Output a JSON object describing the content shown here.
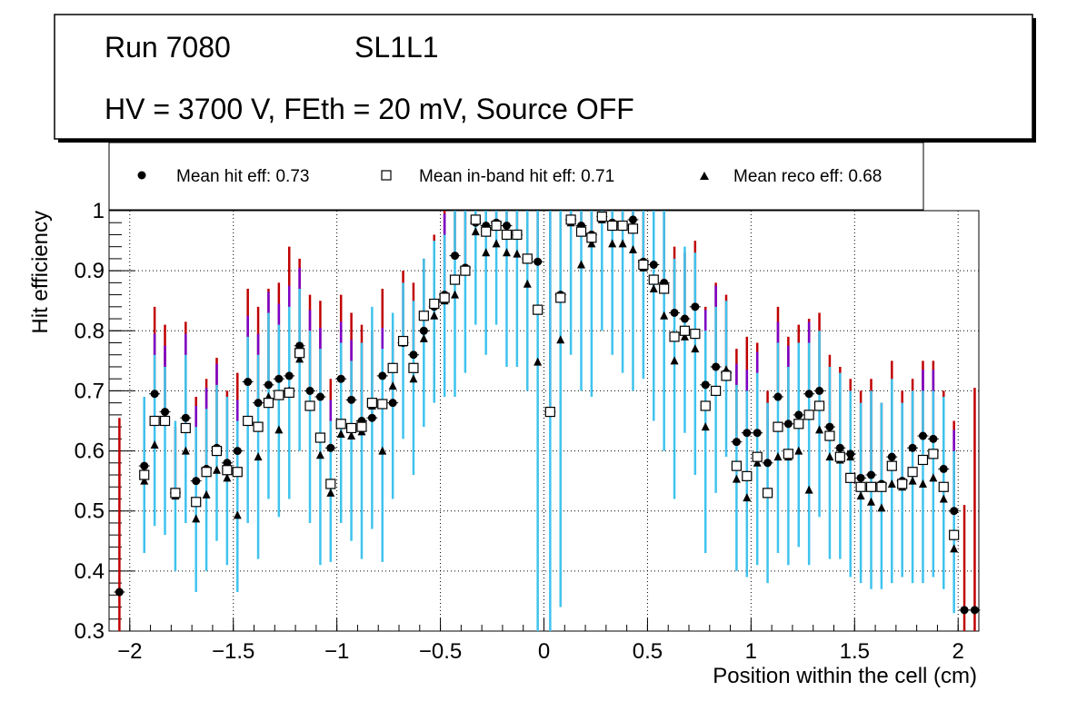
{
  "chart_data": {
    "type": "scatter",
    "title_lines": {
      "run": "Run 7080",
      "layer": "SL1L1",
      "conditions": "HV = 3700 V, FEth = 20 mV, Source OFF"
    },
    "xlabel": "Position within the cell (cm)",
    "ylabel": "Hit efficiency",
    "xlim": [
      -2.1,
      2.1
    ],
    "ylim": [
      0.3,
      1.0
    ],
    "xticks": [
      "−2",
      "−1.5",
      "−1",
      "−0.5",
      "0",
      "0.5",
      "1",
      "1.5",
      "2"
    ],
    "xtick_values": [
      -2,
      -1.5,
      -1,
      -0.5,
      0,
      0.5,
      1,
      1.5,
      2
    ],
    "yticks": [
      "0.3",
      "0.4",
      "0.5",
      "0.6",
      "0.7",
      "0.8",
      "0.9",
      "1"
    ],
    "ytick_values": [
      0.3,
      0.4,
      0.5,
      0.6,
      0.7,
      0.8,
      0.9,
      1.0
    ],
    "grid": true,
    "legend": {
      "placement": "top",
      "entries": [
        {
          "marker": "circle",
          "label": "Mean hit  eff: 0.73"
        },
        {
          "marker": "open-square",
          "label": "Mean in-band hit eff: 0.71"
        },
        {
          "marker": "triangle",
          "label": "Mean reco eff: 0.68"
        }
      ]
    },
    "x": [
      -2.05,
      -1.93,
      -1.88,
      -1.83,
      -1.78,
      -1.73,
      -1.68,
      -1.63,
      -1.58,
      -1.53,
      -1.48,
      -1.43,
      -1.38,
      -1.33,
      -1.28,
      -1.23,
      -1.18,
      -1.13,
      -1.08,
      -1.03,
      -0.98,
      -0.93,
      -0.88,
      -0.83,
      -0.78,
      -0.73,
      -0.68,
      -0.63,
      -0.58,
      -0.53,
      -0.48,
      -0.43,
      -0.38,
      -0.33,
      -0.28,
      -0.23,
      -0.18,
      -0.13,
      -0.08,
      -0.03,
      0.03,
      0.08,
      0.13,
      0.18,
      0.23,
      0.28,
      0.33,
      0.38,
      0.43,
      0.48,
      0.53,
      0.58,
      0.63,
      0.68,
      0.73,
      0.78,
      0.83,
      0.88,
      0.93,
      0.98,
      1.03,
      1.08,
      1.13,
      1.18,
      1.23,
      1.28,
      1.33,
      1.38,
      1.43,
      1.48,
      1.53,
      1.58,
      1.63,
      1.68,
      1.73,
      1.78,
      1.83,
      1.88,
      1.93,
      1.98,
      2.03,
      2.08
    ],
    "series": [
      {
        "name": "Mean hit eff",
        "marker": "circle",
        "values": [
          0.365,
          0.575,
          0.695,
          0.665,
          0.53,
          0.655,
          0.55,
          0.57,
          0.605,
          0.58,
          0.6,
          0.715,
          0.68,
          0.71,
          0.72,
          0.725,
          0.775,
          0.7,
          0.69,
          0.605,
          0.72,
          0.685,
          0.65,
          0.655,
          0.725,
          0.68,
          0.78,
          0.76,
          0.8,
          0.84,
          0.86,
          0.925,
          0.905,
          0.98,
          0.975,
          0.98,
          0.975,
          0.96,
          0.92,
          0.915,
          0.665,
          0.86,
          0.985,
          0.975,
          0.96,
          0.99,
          0.98,
          0.975,
          0.985,
          0.915,
          0.91,
          0.88,
          0.83,
          0.82,
          0.84,
          0.71,
          0.74,
          0.73,
          0.615,
          0.63,
          0.63,
          0.58,
          0.69,
          0.645,
          0.66,
          0.695,
          0.7,
          0.64,
          0.605,
          0.595,
          0.555,
          0.56,
          0.545,
          0.59,
          0.55,
          0.605,
          0.625,
          0.62,
          0.57,
          0.5,
          0.335,
          0.335
        ]
      },
      {
        "name": "Mean in-band hit eff",
        "marker": "open-square",
        "values": [
          null,
          0.56,
          0.65,
          0.65,
          0.53,
          0.638,
          0.515,
          0.565,
          0.6,
          0.568,
          0.565,
          0.65,
          0.64,
          0.68,
          0.693,
          0.697,
          0.763,
          0.675,
          0.622,
          0.545,
          0.645,
          0.638,
          0.64,
          0.68,
          0.678,
          0.738,
          0.783,
          0.738,
          0.825,
          0.845,
          0.855,
          0.885,
          0.9,
          0.985,
          0.965,
          0.975,
          0.96,
          0.96,
          0.92,
          0.835,
          0.665,
          0.855,
          0.985,
          0.965,
          0.955,
          0.99,
          0.975,
          0.975,
          0.97,
          0.91,
          0.885,
          0.87,
          0.79,
          0.8,
          0.795,
          0.675,
          0.7,
          0.725,
          0.575,
          0.558,
          0.59,
          0.53,
          0.64,
          0.595,
          0.645,
          0.66,
          0.675,
          0.625,
          0.59,
          0.555,
          0.54,
          0.54,
          0.54,
          0.575,
          0.545,
          0.565,
          0.585,
          0.595,
          0.54,
          0.46,
          null,
          null
        ]
      },
      {
        "name": "Mean reco eff",
        "marker": "triangle",
        "values": [
          null,
          0.55,
          0.61,
          0.65,
          0.525,
          0.6,
          0.487,
          0.527,
          0.568,
          0.555,
          0.493,
          0.65,
          0.59,
          0.69,
          0.635,
          0.7,
          0.753,
          0.675,
          0.593,
          0.53,
          0.628,
          0.625,
          0.632,
          0.675,
          0.6,
          0.708,
          0.78,
          0.72,
          0.787,
          0.825,
          0.85,
          0.86,
          0.9,
          0.965,
          0.93,
          0.945,
          0.93,
          0.928,
          0.878,
          0.748,
          0.665,
          0.785,
          0.98,
          0.91,
          0.945,
          0.985,
          0.945,
          0.945,
          0.935,
          0.905,
          0.87,
          0.825,
          0.75,
          0.79,
          0.77,
          0.64,
          0.7,
          0.735,
          0.553,
          0.522,
          0.58,
          0.53,
          0.59,
          0.59,
          0.6,
          0.535,
          0.635,
          0.59,
          0.585,
          0.59,
          0.525,
          0.515,
          0.505,
          0.545,
          0.54,
          0.55,
          0.545,
          0.555,
          0.52,
          0.437,
          null,
          null
        ]
      }
    ],
    "error_bars": {
      "cyan_low": [
        null,
        0.43,
        0.475,
        0.46,
        0.4,
        0.48,
        0.365,
        0.4,
        0.45,
        0.41,
        0.365,
        0.48,
        0.42,
        0.52,
        0.49,
        0.52,
        0.6,
        0.48,
        0.41,
        0.415,
        0.48,
        0.45,
        0.42,
        0.47,
        0.415,
        0.52,
        0.62,
        0.56,
        0.64,
        0.68,
        0.69,
        0.69,
        0.73,
        0.81,
        0.76,
        0.81,
        0.74,
        0.74,
        0.7,
        0.3,
        0.3,
        0.34,
        0.76,
        0.7,
        0.69,
        0.8,
        0.76,
        0.73,
        0.7,
        0.72,
        0.65,
        0.6,
        0.52,
        0.63,
        0.56,
        0.43,
        0.53,
        0.59,
        0.4,
        0.39,
        0.41,
        0.38,
        0.43,
        0.41,
        0.44,
        0.41,
        0.49,
        0.42,
        0.42,
        0.39,
        0.38,
        0.37,
        0.37,
        0.38,
        0.39,
        0.38,
        0.38,
        0.39,
        0.37,
        0.33,
        null,
        null
      ],
      "cyan_high": [
        null,
        0.69,
        0.76,
        0.74,
        0.65,
        0.76,
        0.64,
        0.67,
        0.71,
        0.69,
        0.65,
        0.79,
        0.76,
        0.83,
        0.81,
        0.84,
        0.87,
        0.8,
        0.77,
        0.65,
        0.78,
        0.75,
        0.78,
        0.84,
        0.77,
        0.83,
        0.88,
        0.85,
        0.92,
        0.95,
        0.96,
        1.0,
        1.0,
        1.0,
        1.0,
        1.0,
        1.0,
        1.0,
        1.0,
        1.0,
        1.0,
        1.0,
        1.0,
        1.0,
        1.0,
        1.0,
        1.0,
        1.0,
        1.0,
        1.0,
        1.0,
        1.0,
        0.92,
        0.94,
        0.93,
        0.8,
        0.84,
        0.85,
        0.71,
        0.7,
        0.73,
        0.68,
        0.78,
        0.74,
        0.78,
        0.78,
        0.8,
        0.74,
        0.73,
        0.7,
        0.68,
        0.7,
        0.68,
        0.72,
        0.68,
        0.7,
        0.7,
        0.7,
        0.69,
        0.6,
        null,
        null
      ],
      "red_high": [
        0.655,
        0.69,
        0.84,
        0.81,
        0.64,
        0.815,
        0.69,
        0.72,
        0.755,
        0.7,
        0.73,
        0.87,
        0.84,
        0.87,
        0.88,
        0.94,
        0.92,
        0.86,
        0.85,
        0.72,
        0.86,
        0.83,
        0.81,
        0.8,
        0.87,
        0.8,
        0.9,
        0.88,
        0.92,
        0.96,
        1.0,
        1.0,
        1.0,
        1.0,
        1.0,
        1.0,
        1.0,
        1.0,
        1.0,
        1.0,
        1.0,
        1.0,
        1.0,
        1.0,
        1.0,
        1.0,
        1.0,
        1.0,
        1.0,
        1.0,
        1.0,
        1.0,
        0.94,
        0.93,
        0.95,
        0.84,
        0.88,
        0.86,
        0.77,
        0.79,
        0.78,
        0.7,
        0.84,
        0.79,
        0.81,
        0.82,
        0.83,
        0.76,
        0.74,
        0.72,
        0.7,
        0.72,
        0.68,
        0.75,
        0.7,
        0.72,
        0.75,
        0.75,
        0.7,
        0.65,
        0.51,
        0.705
      ],
      "red_low": [
        0.3,
        null,
        null,
        null,
        null,
        null,
        null,
        null,
        null,
        null,
        null,
        null,
        null,
        null,
        null,
        null,
        null,
        null,
        null,
        null,
        null,
        null,
        null,
        null,
        null,
        null,
        null,
        null,
        null,
        null,
        null,
        null,
        null,
        null,
        null,
        null,
        null,
        null,
        null,
        null,
        null,
        null,
        null,
        null,
        null,
        null,
        null,
        null,
        null,
        null,
        null,
        null,
        null,
        null,
        null,
        null,
        null,
        null,
        null,
        null,
        null,
        null,
        null,
        null,
        null,
        null,
        null,
        null,
        null,
        null,
        null,
        null,
        null,
        null,
        null,
        null,
        null,
        null,
        null,
        null,
        0.3,
        0.3
      ]
    }
  }
}
